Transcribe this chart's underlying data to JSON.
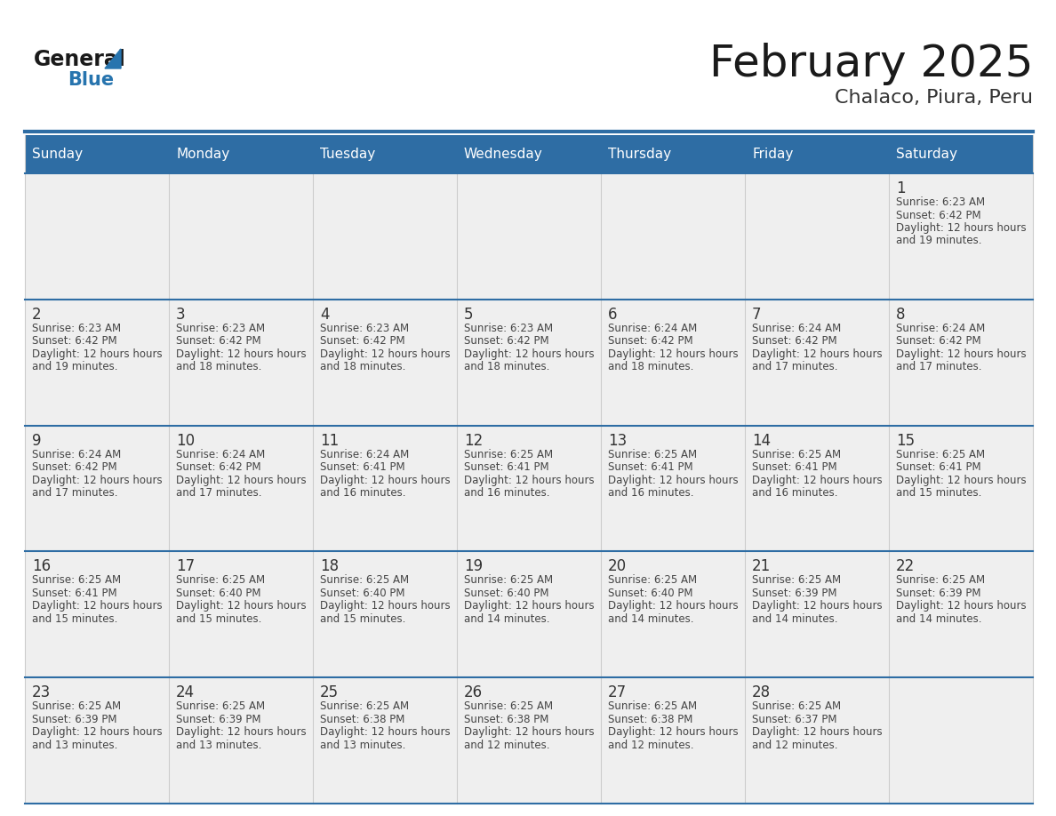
{
  "title": "February 2025",
  "subtitle": "Chalaco, Piura, Peru",
  "header_bg": "#2E6DA4",
  "header_text": "#FFFFFF",
  "day_names": [
    "Sunday",
    "Monday",
    "Tuesday",
    "Wednesday",
    "Thursday",
    "Friday",
    "Saturday"
  ],
  "cell_bg": "#EFEFEF",
  "row_separator_color": "#2E6DA4",
  "day_number_color": "#333333",
  "info_text_color": "#444444",
  "title_color": "#1a1a1a",
  "subtitle_color": "#333333",
  "logo_general_color": "#1a1a1a",
  "logo_blue_color": "#2774AE",
  "weeks": [
    [
      null,
      null,
      null,
      null,
      null,
      null,
      1
    ],
    [
      2,
      3,
      4,
      5,
      6,
      7,
      8
    ],
    [
      9,
      10,
      11,
      12,
      13,
      14,
      15
    ],
    [
      16,
      17,
      18,
      19,
      20,
      21,
      22
    ],
    [
      23,
      24,
      25,
      26,
      27,
      28,
      null
    ]
  ],
  "day_data": {
    "1": {
      "sunrise": "6:23 AM",
      "sunset": "6:42 PM",
      "daylight": "12 hours and 19 minutes"
    },
    "2": {
      "sunrise": "6:23 AM",
      "sunset": "6:42 PM",
      "daylight": "12 hours and 19 minutes"
    },
    "3": {
      "sunrise": "6:23 AM",
      "sunset": "6:42 PM",
      "daylight": "12 hours and 18 minutes"
    },
    "4": {
      "sunrise": "6:23 AM",
      "sunset": "6:42 PM",
      "daylight": "12 hours and 18 minutes"
    },
    "5": {
      "sunrise": "6:23 AM",
      "sunset": "6:42 PM",
      "daylight": "12 hours and 18 minutes"
    },
    "6": {
      "sunrise": "6:24 AM",
      "sunset": "6:42 PM",
      "daylight": "12 hours and 18 minutes"
    },
    "7": {
      "sunrise": "6:24 AM",
      "sunset": "6:42 PM",
      "daylight": "12 hours and 17 minutes"
    },
    "8": {
      "sunrise": "6:24 AM",
      "sunset": "6:42 PM",
      "daylight": "12 hours and 17 minutes"
    },
    "9": {
      "sunrise": "6:24 AM",
      "sunset": "6:42 PM",
      "daylight": "12 hours and 17 minutes"
    },
    "10": {
      "sunrise": "6:24 AM",
      "sunset": "6:42 PM",
      "daylight": "12 hours and 17 minutes"
    },
    "11": {
      "sunrise": "6:24 AM",
      "sunset": "6:41 PM",
      "daylight": "12 hours and 16 minutes"
    },
    "12": {
      "sunrise": "6:25 AM",
      "sunset": "6:41 PM",
      "daylight": "12 hours and 16 minutes"
    },
    "13": {
      "sunrise": "6:25 AM",
      "sunset": "6:41 PM",
      "daylight": "12 hours and 16 minutes"
    },
    "14": {
      "sunrise": "6:25 AM",
      "sunset": "6:41 PM",
      "daylight": "12 hours and 16 minutes"
    },
    "15": {
      "sunrise": "6:25 AM",
      "sunset": "6:41 PM",
      "daylight": "12 hours and 15 minutes"
    },
    "16": {
      "sunrise": "6:25 AM",
      "sunset": "6:41 PM",
      "daylight": "12 hours and 15 minutes"
    },
    "17": {
      "sunrise": "6:25 AM",
      "sunset": "6:40 PM",
      "daylight": "12 hours and 15 minutes"
    },
    "18": {
      "sunrise": "6:25 AM",
      "sunset": "6:40 PM",
      "daylight": "12 hours and 15 minutes"
    },
    "19": {
      "sunrise": "6:25 AM",
      "sunset": "6:40 PM",
      "daylight": "12 hours and 14 minutes"
    },
    "20": {
      "sunrise": "6:25 AM",
      "sunset": "6:40 PM",
      "daylight": "12 hours and 14 minutes"
    },
    "21": {
      "sunrise": "6:25 AM",
      "sunset": "6:39 PM",
      "daylight": "12 hours and 14 minutes"
    },
    "22": {
      "sunrise": "6:25 AM",
      "sunset": "6:39 PM",
      "daylight": "12 hours and 14 minutes"
    },
    "23": {
      "sunrise": "6:25 AM",
      "sunset": "6:39 PM",
      "daylight": "12 hours and 13 minutes"
    },
    "24": {
      "sunrise": "6:25 AM",
      "sunset": "6:39 PM",
      "daylight": "12 hours and 13 minutes"
    },
    "25": {
      "sunrise": "6:25 AM",
      "sunset": "6:38 PM",
      "daylight": "12 hours and 13 minutes"
    },
    "26": {
      "sunrise": "6:25 AM",
      "sunset": "6:38 PM",
      "daylight": "12 hours and 12 minutes"
    },
    "27": {
      "sunrise": "6:25 AM",
      "sunset": "6:38 PM",
      "daylight": "12 hours and 12 minutes"
    },
    "28": {
      "sunrise": "6:25 AM",
      "sunset": "6:37 PM",
      "daylight": "12 hours and 12 minutes"
    }
  }
}
